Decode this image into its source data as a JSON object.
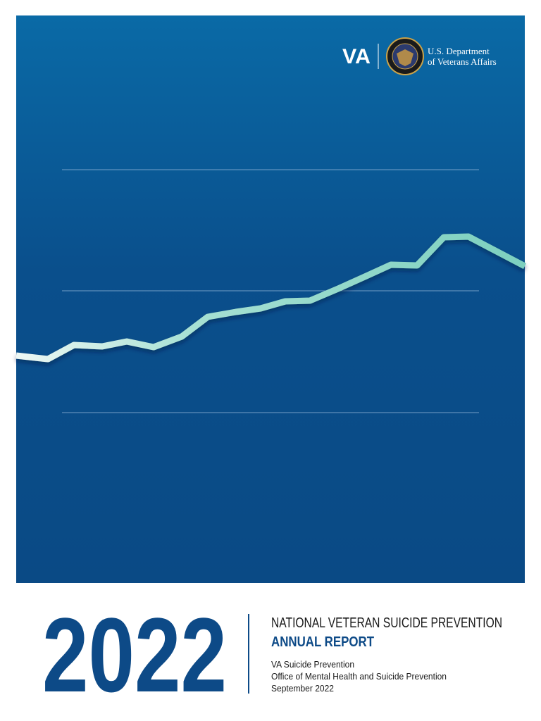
{
  "header": {
    "logo": "VA",
    "department": [
      "U.S. Department",
      "of Veterans Affairs"
    ]
  },
  "cover": {
    "year": "2022",
    "title": "NATIONAL VETERAN SUICIDE PREVENTION",
    "subtitle": "ANNUAL REPORT",
    "details": [
      "VA Suicide Prevention",
      "Office of Mental Health and Suicide Prevention",
      "September 2022"
    ]
  }
}
